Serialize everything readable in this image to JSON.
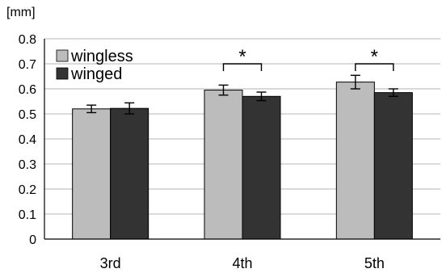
{
  "chart_data": {
    "type": "bar",
    "title": "",
    "ylabel": "[mm]",
    "xlabel": "",
    "ylim": [
      0,
      0.8
    ],
    "ytick_step": 0.1,
    "yticks": [
      "0",
      "0.1",
      "0.2",
      "0.3",
      "0.4",
      "0.5",
      "0.6",
      "0.7",
      "0.8"
    ],
    "grid": true,
    "legend_position": "top-left",
    "categories": [
      "3rd",
      "4th",
      "5th"
    ],
    "series": [
      {
        "name": "wingless",
        "color": "#bcbcbc",
        "values": [
          0.52,
          0.595,
          0.627
        ],
        "errors": [
          0.015,
          0.02,
          0.027
        ]
      },
      {
        "name": "winged",
        "color": "#333333",
        "values": [
          0.522,
          0.57,
          0.585
        ],
        "errors": [
          0.022,
          0.017,
          0.015
        ]
      }
    ],
    "significance": [
      {
        "category": "4th",
        "label": "*"
      },
      {
        "category": "5th",
        "label": "*"
      }
    ]
  }
}
